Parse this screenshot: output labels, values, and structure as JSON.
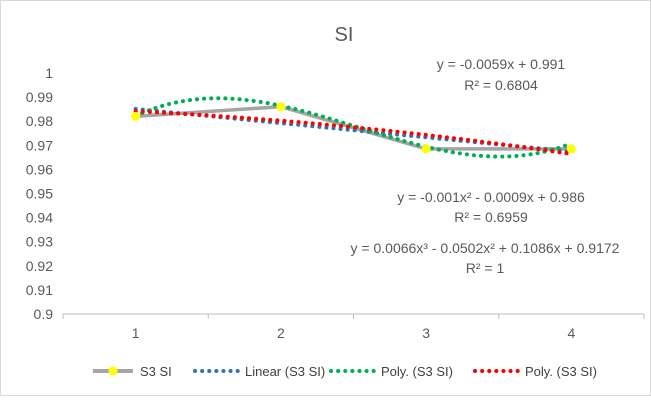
{
  "chart_data": {
    "type": "line",
    "title": "SI",
    "x": [
      1,
      2,
      3,
      4
    ],
    "xlim": [
      0.5,
      4.5
    ],
    "ylim": [
      0.9,
      1.0
    ],
    "y_ticks": [
      "0.9",
      "0.91",
      "0.92",
      "0.93",
      "0.94",
      "0.95",
      "0.96",
      "0.97",
      "0.98",
      "0.99",
      "1"
    ],
    "x_ticks": [
      "1",
      "2",
      "3",
      "4"
    ],
    "grid": false,
    "legend_position": "bottom",
    "series": [
      {
        "name": "S3 SI",
        "values": [
          0.982,
          0.986,
          0.9685,
          0.9685
        ],
        "color": "#a5a5a5",
        "marker_color": "#ffff00",
        "style": "solid"
      }
    ],
    "trendlines": [
      {
        "name": "Linear (S3 SI)",
        "kind": "linear",
        "coefficients": [
          -0.0059,
          0.991
        ],
        "color": "#2e75b6",
        "style": "dotted"
      },
      {
        "name": "Poly. (S3 SI)",
        "kind": "polynomial",
        "coefficients": [
          0.0066,
          -0.0502,
          0.1086,
          0.9172
        ],
        "color": "#00b050",
        "style": "dotted"
      },
      {
        "name": "Poly. (S3 SI)",
        "kind": "polynomial",
        "coefficients": [
          -0.001,
          -0.0009,
          0.986
        ],
        "color": "#ff0000",
        "style": "dotted"
      }
    ],
    "annotations": [
      {
        "equation": "y = -0.0059x + 0.991",
        "r2": "R² = 0.6804"
      },
      {
        "equation": "y = -0.001x² - 0.0009x + 0.986",
        "r2": "R² = 0.6959"
      },
      {
        "equation": "y = 0.0066x³ - 0.0502x² + 0.1086x + 0.9172",
        "r2": "R² = 1"
      }
    ]
  }
}
